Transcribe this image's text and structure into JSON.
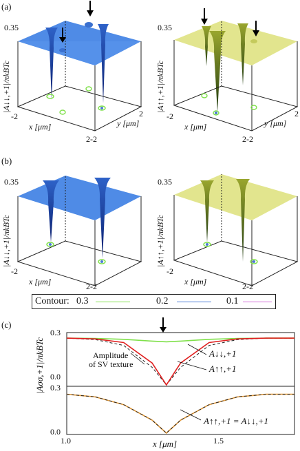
{
  "panel_labels": {
    "a": "(a)",
    "b": "(b)",
    "c": "(c)"
  },
  "plot3d": {
    "z_tick": "0.35",
    "x_axis_label": "x [μm]",
    "y_axis_label": "y [μm]",
    "tick_neg2": "-2",
    "tick_pos2": "2",
    "tick_corner": "2-2",
    "ylabels": {
      "a_left": "|A↓↓,+1|/πkBTc",
      "a_right": "|A↑↑,+1|/πkBTc",
      "b_left": "|A↓↓,+1|/πkBTc",
      "b_right": "|A↑↑,+1|/πkBTc"
    },
    "colors": {
      "blue": "#4f8be6",
      "yellow": "#e2e58e"
    }
  },
  "legend": {
    "title": "Contour:",
    "items": [
      {
        "value": "0.3",
        "color": "#7fe04a"
      },
      {
        "value": "0.2",
        "color": "#4a7bd6"
      },
      {
        "value": "0.1",
        "color": "#d36cd8"
      }
    ]
  },
  "chart_data": {
    "type": "line",
    "panels": [
      {
        "name": "upper",
        "ylim": [
          0.0,
          0.33
        ],
        "yticks": [
          "0.3",
          "0.0"
        ],
        "series": [
          {
            "name": "green",
            "x": [
              1.0,
              1.1,
              1.2,
              1.3,
              1.35,
              1.4,
              1.5,
              1.6,
              1.7,
              1.8
            ],
            "y": [
              0.32,
              0.318,
              0.312,
              0.3,
              0.295,
              0.3,
              0.312,
              0.318,
              0.32,
              0.32
            ]
          },
          {
            "name": "black-dashed",
            "x": [
              1.0,
              1.1,
              1.2,
              1.3,
              1.35,
              1.4,
              1.5,
              1.6,
              1.7,
              1.8
            ],
            "y": [
              0.32,
              0.31,
              0.27,
              0.12,
              0.0,
              0.12,
              0.27,
              0.31,
              0.32,
              0.32
            ]
          },
          {
            "name": "red",
            "x": [
              1.0,
              1.1,
              1.2,
              1.3,
              1.35,
              1.4,
              1.5,
              1.6,
              1.7,
              1.8
            ],
            "y": [
              0.32,
              0.315,
              0.29,
              0.15,
              0.0,
              0.15,
              0.29,
              0.315,
              0.32,
              0.32
            ]
          }
        ],
        "annotations": [
          "Amplitude",
          "of SV texture",
          "A↓↓,+1",
          "A↑↑,+1"
        ]
      },
      {
        "name": "lower",
        "ylim": [
          0.0,
          0.33
        ],
        "yticks": [
          "0.3",
          "0.0"
        ],
        "series": [
          {
            "name": "orange",
            "x": [
              1.0,
              1.1,
              1.2,
              1.3,
              1.35,
              1.4,
              1.5,
              1.6,
              1.7,
              1.8
            ],
            "y": [
              0.3,
              0.28,
              0.22,
              0.1,
              0.0,
              0.1,
              0.22,
              0.28,
              0.3,
              0.3
            ]
          },
          {
            "name": "black-dashed",
            "x": [
              1.0,
              1.1,
              1.2,
              1.3,
              1.35,
              1.4,
              1.5,
              1.6,
              1.7,
              1.8
            ],
            "y": [
              0.3,
              0.28,
              0.22,
              0.1,
              0.0,
              0.1,
              0.22,
              0.28,
              0.3,
              0.3
            ]
          }
        ],
        "annotations": [
          "A↑↑,+1 = A↓↓,+1"
        ]
      }
    ],
    "xlabel": "x [μm]",
    "xticks": [
      "1.0",
      "1.5"
    ],
    "xlim": [
      1.0,
      1.8
    ],
    "ylabel": "|Aσσ,+1|/πkBTc"
  }
}
